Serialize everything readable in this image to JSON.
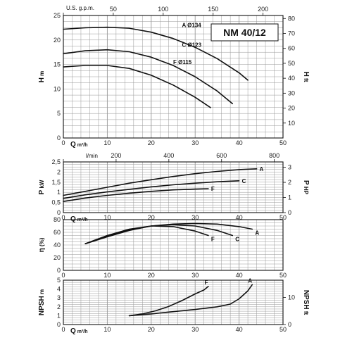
{
  "title": "NM 40/12",
  "chart_data": [
    {
      "id": "head",
      "type": "line",
      "xlim": [
        0,
        50
      ],
      "ylim": [
        0,
        25
      ],
      "x_ticks": [
        0,
        10,
        20,
        30,
        40,
        50
      ],
      "y_ticks": [
        0,
        5,
        10,
        15,
        20,
        25
      ],
      "ylabel": "H",
      "yunit": "m",
      "y2label": "H",
      "y2unit": "ft",
      "y2ticks": [
        10,
        20,
        30,
        40,
        50,
        60,
        70,
        80
      ],
      "top_axis": {
        "label": "U.S. g.p.m.",
        "ticks": [
          0,
          50,
          100,
          150,
          200
        ],
        "range": [
          0,
          220
        ]
      },
      "bottom_label": "Q",
      "bottom_unit": "m³/h",
      "series": [
        {
          "name": "A",
          "tag": "Ø134",
          "x": [
            0,
            5,
            10,
            15,
            20,
            25,
            30,
            35,
            40,
            42
          ],
          "y": [
            22.2,
            22.5,
            22.6,
            22.4,
            21.6,
            20.3,
            18.5,
            16.2,
            13.3,
            11.8
          ]
        },
        {
          "name": "C",
          "tag": "Ø123",
          "x": [
            0,
            5,
            10,
            15,
            20,
            25,
            30,
            35,
            38.5
          ],
          "y": [
            17.2,
            17.8,
            18.0,
            17.6,
            16.5,
            14.8,
            12.5,
            9.6,
            7.0
          ]
        },
        {
          "name": "F",
          "tag": "Ø115",
          "x": [
            0,
            5,
            10,
            15,
            20,
            25,
            30,
            33.5
          ],
          "y": [
            14.5,
            14.8,
            14.8,
            14.2,
            12.8,
            10.8,
            8.3,
            6.2
          ]
        }
      ]
    },
    {
      "id": "power",
      "type": "line",
      "xlim": [
        0,
        50
      ],
      "ylim": [
        0,
        2.5
      ],
      "x_ticks": [
        0,
        10,
        20,
        30,
        40,
        50
      ],
      "y_ticks": [
        0,
        0.5,
        1,
        1.5,
        2,
        2.5
      ],
      "y_tick_labels": [
        "0",
        "0,5",
        "1",
        "1,5",
        "2",
        "2,5"
      ],
      "ylabel": "P",
      "yunit": "kW",
      "y2label": "P",
      "y2unit": "HP",
      "y2ticks": [
        0,
        1,
        2,
        3
      ],
      "top_axis": {
        "label": "l/min",
        "ticks": [
          0,
          200,
          400,
          600,
          800
        ],
        "range": [
          0,
          833
        ]
      },
      "bottom_label": "Q",
      "bottom_unit": "m³/h",
      "series": [
        {
          "name": "A",
          "x": [
            0,
            5,
            10,
            15,
            20,
            25,
            30,
            35,
            40,
            44
          ],
          "y": [
            0.85,
            1.05,
            1.25,
            1.45,
            1.62,
            1.78,
            1.92,
            2.03,
            2.12,
            2.16
          ]
        },
        {
          "name": "C",
          "x": [
            0,
            5,
            10,
            15,
            20,
            25,
            30,
            35,
            40
          ],
          "y": [
            0.7,
            0.88,
            1.02,
            1.15,
            1.27,
            1.37,
            1.45,
            1.52,
            1.57
          ]
        },
        {
          "name": "F",
          "x": [
            0,
            5,
            10,
            15,
            20,
            25,
            30,
            33
          ],
          "y": [
            0.55,
            0.72,
            0.85,
            0.96,
            1.05,
            1.12,
            1.16,
            1.18
          ]
        }
      ]
    },
    {
      "id": "efficiency",
      "type": "line",
      "xlim": [
        0,
        50
      ],
      "ylim": [
        0,
        80
      ],
      "x_ticks": [
        0,
        10,
        20,
        30,
        40,
        50
      ],
      "y_ticks": [
        0,
        20,
        40,
        60,
        80
      ],
      "ylabel": "η",
      "yunit": "(%)",
      "series": [
        {
          "name": "A",
          "x": [
            5,
            10,
            15,
            20,
            25,
            30,
            35,
            40,
            43
          ],
          "y": [
            42,
            53,
            63,
            70,
            73,
            74,
            73,
            69,
            65
          ]
        },
        {
          "name": "C",
          "x": [
            5,
            10,
            15,
            20,
            25,
            30,
            35,
            38.5
          ],
          "y": [
            42,
            54,
            64,
            70,
            72,
            70,
            63,
            55
          ]
        },
        {
          "name": "F",
          "x": [
            5,
            10,
            15,
            20,
            25,
            30,
            33
          ],
          "y": [
            42,
            55,
            65,
            70,
            69,
            62,
            55
          ]
        }
      ]
    },
    {
      "id": "npsh",
      "type": "line",
      "xlim": [
        0,
        50
      ],
      "ylim": [
        0,
        5
      ],
      "x_ticks": [
        0,
        10,
        20,
        30,
        40,
        50
      ],
      "y_ticks": [
        0,
        1,
        2,
        3,
        4,
        5
      ],
      "ylabel": "NPSH",
      "yunit": "m",
      "y2label": "NPSH",
      "y2unit": "ft",
      "y2ticks": [
        0,
        10
      ],
      "bottom_label": "Q",
      "bottom_unit": "m³/h",
      "series": [
        {
          "name": "A",
          "x": [
            15,
            20,
            25,
            30,
            35,
            38,
            40,
            42,
            43
          ],
          "y": [
            1.0,
            1.2,
            1.45,
            1.7,
            2.0,
            2.3,
            2.9,
            3.8,
            4.5
          ]
        },
        {
          "name": "F",
          "x": [
            15,
            18,
            21,
            24,
            27,
            30,
            32,
            33
          ],
          "y": [
            1.0,
            1.2,
            1.55,
            2.05,
            2.7,
            3.45,
            3.9,
            4.3
          ]
        }
      ]
    }
  ]
}
